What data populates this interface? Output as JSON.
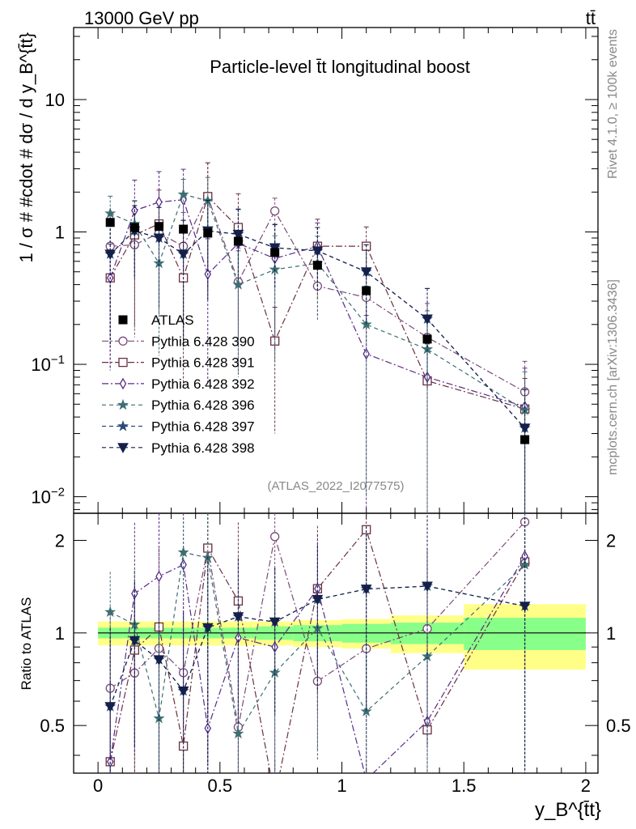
{
  "header": {
    "beam_label": "13000 GeV pp",
    "process_label": "tt̄"
  },
  "side_text": {
    "rivet": "Rivet 4.1.0, ≥ 100k events",
    "mcplots": "mcplots.cern.ch [arXiv:1306.3436]"
  },
  "chart_data": {
    "type": "scatter",
    "title": "Particle-level t̄t longitudinal boost",
    "analysis_id": "(ATLAS_2022_I2077575)",
    "xlabel": "y_B^{t̄t}",
    "ylabel": "1 / σ # #cdot # dσ / d y_B^{t̄t}",
    "ratio_ylabel": "Ratio to ATLAS",
    "xlim": [
      -0.1,
      2.05
    ],
    "ylim": [
      0.0075,
      35
    ],
    "yscale": "log",
    "ratio_ylim": [
      0.35,
      2.45
    ],
    "x_ticks": [
      {
        "v": 0,
        "label": "0"
      },
      {
        "v": 0.5,
        "label": "0.5"
      },
      {
        "v": 1,
        "label": "1"
      },
      {
        "v": 1.5,
        "label": "1.5"
      },
      {
        "v": 2,
        "label": "2"
      }
    ],
    "y_ticks": [
      {
        "v": 0.01,
        "base": "10",
        "exp": "−2"
      },
      {
        "v": 0.1,
        "base": "10",
        "exp": "−1"
      },
      {
        "v": 1,
        "base": "1",
        "exp": ""
      },
      {
        "v": 10,
        "base": "10",
        "exp": ""
      }
    ],
    "ratio_ticks": [
      {
        "v": 0.5,
        "label": "0.5"
      },
      {
        "v": 1,
        "label": "1"
      },
      {
        "v": 2,
        "label": "2"
      }
    ],
    "x": [
      0.05,
      0.15,
      0.25,
      0.35,
      0.45,
      0.575,
      0.725,
      0.9,
      1.1,
      1.35,
      1.75
    ],
    "bin_edges": [
      0,
      0.1,
      0.2,
      0.3,
      0.4,
      0.5,
      0.65,
      0.8,
      1.0,
      1.2,
      1.5,
      2.0
    ],
    "data": {
      "name": "ATLAS",
      "values": [
        1.18,
        1.08,
        1.1,
        1.05,
        0.98,
        0.85,
        0.7,
        0.56,
        0.36,
        0.155,
        0.027
      ],
      "band_inner": [
        0.04,
        0.04,
        0.04,
        0.04,
        0.04,
        0.04,
        0.05,
        0.06,
        0.07,
        0.08,
        0.12
      ],
      "band_outer": [
        0.09,
        0.09,
        0.09,
        0.09,
        0.09,
        0.09,
        0.09,
        0.1,
        0.11,
        0.14,
        0.24
      ]
    },
    "series": [
      {
        "name": "Pythia 6.428 390",
        "color": "#7a4a78",
        "marker": "circle-open",
        "dash": "8,3,2,3",
        "values": [
          0.78,
          0.8,
          0.98,
          0.78,
          1.85,
          0.42,
          1.44,
          0.39,
          0.32,
          0.16,
          0.062
        ],
        "err_frac": [
          0.8,
          0.8,
          0.75,
          0.8,
          0.8,
          0.8,
          0.25,
          0.45,
          0.6,
          0.8,
          0.7
        ]
      },
      {
        "name": "Pythia 6.428 391",
        "color": "#6a3040",
        "marker": "square-open",
        "dash": "8,3,2,3",
        "values": [
          0.45,
          0.95,
          1.15,
          0.45,
          1.85,
          1.08,
          0.15,
          0.78,
          0.78,
          0.075,
          0.046
        ],
        "err_frac": [
          0.8,
          0.8,
          0.8,
          0.85,
          0.8,
          0.8,
          0.8,
          0.6,
          0.4,
          0.9,
          0.7
        ]
      },
      {
        "name": "Pythia 6.428 392",
        "color": "#5a2a88",
        "marker": "diamond-open",
        "dash": "8,3,2,3",
        "values": [
          0.45,
          1.45,
          1.68,
          1.75,
          0.48,
          0.82,
          0.63,
          0.78,
          0.12,
          0.08,
          0.048
        ],
        "err_frac": [
          0.8,
          0.7,
          0.7,
          0.7,
          0.85,
          0.8,
          0.8,
          0.5,
          0.95,
          0.95,
          0.95
        ]
      },
      {
        "name": "Pythia 6.428 396",
        "color": "#3d6e72",
        "marker": "star-open",
        "dash": "5,4",
        "values": [
          1.38,
          1.15,
          0.58,
          1.92,
          1.72,
          0.4,
          0.52,
          0.58,
          0.2,
          0.13,
          0.045
        ],
        "err_frac": [
          0.35,
          0.5,
          0.8,
          0.3,
          0.5,
          0.8,
          0.8,
          0.6,
          0.95,
          0.95,
          0.95
        ]
      },
      {
        "name": "Pythia 6.428 397",
        "color": "#2a4a7a",
        "marker": "star-open",
        "dash": "5,4",
        "values": [
          0.68,
          1.02,
          0.9,
          0.68,
          1.02,
          0.96,
          0.76,
          0.72,
          0.5,
          0.22,
          0.033
        ],
        "err_frac": [
          0.8,
          0.55,
          0.7,
          0.8,
          0.7,
          0.55,
          0.5,
          0.5,
          0.6,
          0.7,
          0.95
        ]
      },
      {
        "name": "Pythia 6.428 398",
        "color": "#14204a",
        "marker": "triangle-down-filled",
        "dash": "5,4",
        "values": [
          0.68,
          1.02,
          0.9,
          0.68,
          1.02,
          0.96,
          0.76,
          0.72,
          0.5,
          0.22,
          0.033
        ],
        "err_frac": [
          0.8,
          0.55,
          0.7,
          0.8,
          0.7,
          0.55,
          0.5,
          0.5,
          0.6,
          0.7,
          0.95
        ]
      }
    ]
  }
}
